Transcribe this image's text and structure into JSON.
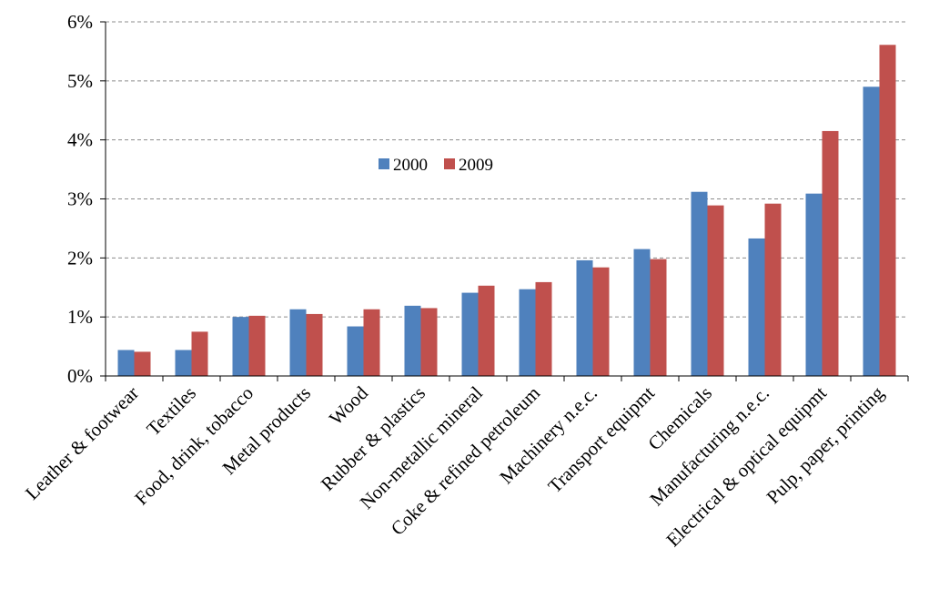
{
  "chart_data": {
    "type": "bar",
    "categories": [
      "Leather & footwear",
      "Textiles",
      "Food, drink, tobacco",
      "Metal products",
      "Wood",
      "Rubber & plastics",
      "Non-metallic mineral",
      "Coke & refined petroleum",
      "Machinery n.e.c.",
      "Transport equipmt",
      "Chemicals",
      "Manufacturing n.e.c.",
      "Electrical & optical equipmt",
      "Pulp, paper, printing"
    ],
    "series": [
      {
        "name": "2000",
        "color": "#4F81BD",
        "values": [
          0.44,
          0.44,
          1.0,
          1.13,
          0.84,
          1.19,
          1.41,
          1.47,
          1.96,
          2.15,
          3.12,
          2.33,
          3.09,
          4.9
        ]
      },
      {
        "name": "2009",
        "color": "#C0504D",
        "values": [
          0.41,
          0.75,
          1.02,
          1.05,
          1.13,
          1.15,
          1.53,
          1.59,
          1.84,
          1.98,
          2.89,
          2.92,
          4.15,
          5.61
        ]
      }
    ],
    "ylim": [
      0,
      6
    ],
    "yticks": [
      0,
      1,
      2,
      3,
      4,
      5,
      6
    ],
    "ytick_labels": [
      "0%",
      "1%",
      "2%",
      "3%",
      "4%",
      "5%",
      "6%"
    ],
    "title": "",
    "xlabel": "",
    "ylabel": "",
    "grid": true,
    "grid_style": "dashed",
    "legend_position": "center-left"
  }
}
